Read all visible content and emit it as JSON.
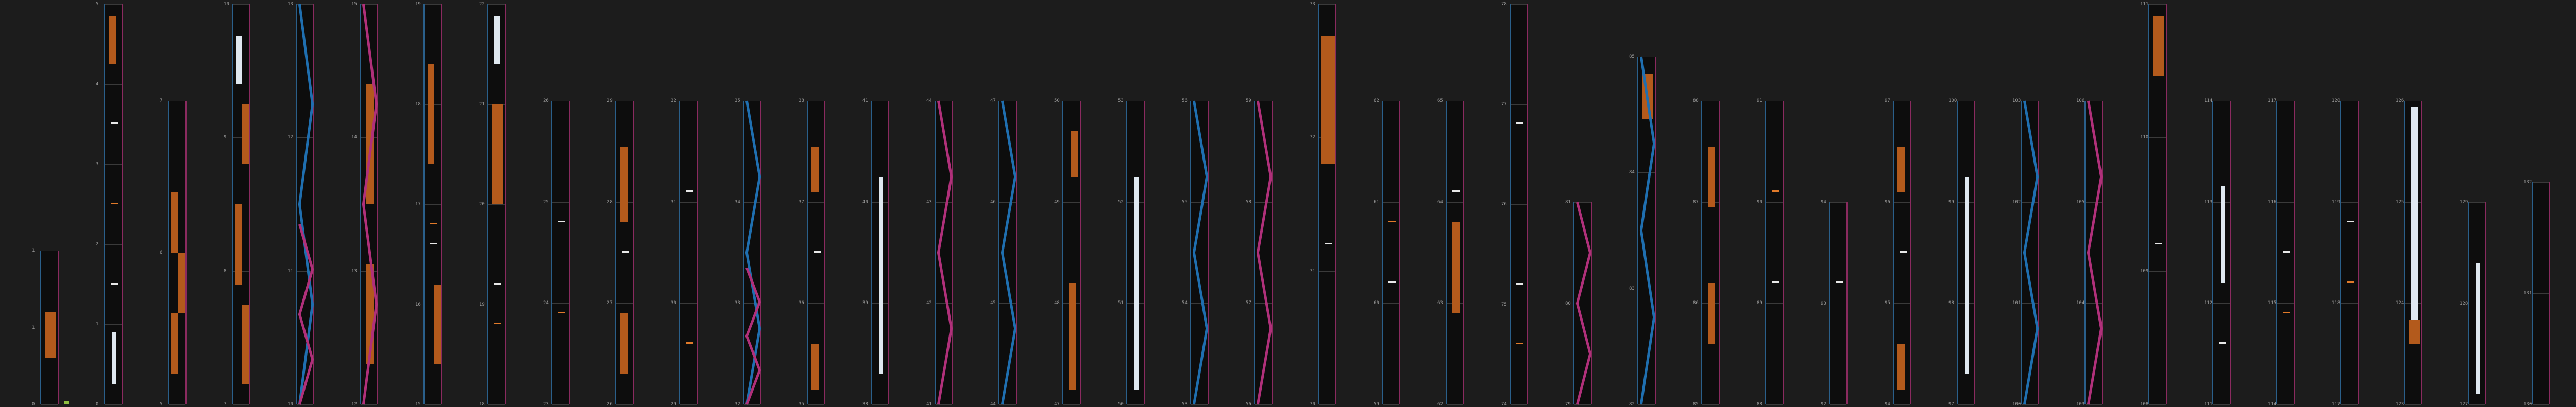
{
  "colors": {
    "background": "#1c1c1c",
    "lane": "#0d0d0d",
    "hold_orange": "#b35a1c",
    "hold_white": "#dfe8f0",
    "curve_blue": "#1f6fb0",
    "curve_pink": "#b0307a",
    "marker_green": "#8fbf40"
  },
  "lanes": [
    {
      "ticks": [
        "1",
        "1",
        "0"
      ],
      "height_frac": 0.38,
      "holds": [
        [
          0.3,
          0.6,
          "o",
          0.2,
          0.8
        ]
      ],
      "taps": []
    },
    {
      "ticks": [
        "5",
        "4",
        "3",
        "2",
        "1",
        "0"
      ],
      "height_frac": 0.99,
      "holds": [
        [
          0.85,
          0.97,
          "o",
          0.2,
          0.6
        ],
        [
          0.05,
          0.18,
          "w",
          0.4,
          0.6
        ]
      ],
      "taps": [
        0.3,
        0.5,
        0.7
      ]
    },
    {
      "ticks": [
        "7",
        "6",
        "5"
      ],
      "height_frac": 0.75,
      "holds": [
        [
          0.5,
          0.7,
          "o",
          0.1,
          0.5
        ],
        [
          0.3,
          0.5,
          "o",
          0.5,
          0.9
        ],
        [
          0.1,
          0.3,
          "o",
          0.1,
          0.5
        ]
      ],
      "taps": []
    },
    {
      "ticks": [
        "10",
        "9",
        "8",
        "7"
      ],
      "height_frac": 0.99,
      "holds": [
        [
          0.8,
          0.92,
          "w",
          0.2,
          0.5
        ],
        [
          0.6,
          0.75,
          "o",
          0.5,
          0.9
        ],
        [
          0.3,
          0.5,
          "o",
          0.1,
          0.5
        ],
        [
          0.05,
          0.25,
          "o",
          0.5,
          0.9
        ]
      ],
      "taps": []
    },
    {
      "ticks": [
        "13",
        "12",
        "11",
        "10"
      ],
      "height_frac": 0.99,
      "holds": [],
      "taps": [],
      "curve": "b",
      "curve2": "p"
    },
    {
      "ticks": [
        "15",
        "14",
        "13",
        "12"
      ],
      "height_frac": 0.99,
      "holds": [
        [
          0.5,
          0.8,
          "o",
          0.3,
          0.7
        ],
        [
          0.1,
          0.35,
          "o",
          0.3,
          0.7
        ]
      ],
      "taps": [],
      "curve": "p"
    },
    {
      "ticks": [
        "19",
        "18",
        "17",
        "16",
        "15"
      ],
      "height_frac": 0.99,
      "holds": [
        [
          0.6,
          0.85,
          "o",
          0.2,
          0.5
        ],
        [
          0.1,
          0.3,
          "o",
          0.5,
          0.9
        ]
      ],
      "taps": [
        0.4,
        0.45
      ]
    },
    {
      "ticks": [
        "22",
        "21",
        "20",
        "19",
        "18"
      ],
      "height_frac": 0.99,
      "holds": [
        [
          0.5,
          0.75,
          "o",
          0.2,
          0.8
        ],
        [
          0.85,
          0.97,
          "w",
          0.3,
          0.6
        ]
      ],
      "taps": [
        0.3,
        0.2
      ]
    },
    {
      "ticks": [
        "26",
        "25",
        "24",
        "23"
      ],
      "height_frac": 0.75,
      "holds": [],
      "taps": [
        0.6,
        0.3
      ]
    },
    {
      "ticks": [
        "29",
        "28",
        "27",
        "26"
      ],
      "height_frac": 0.75,
      "holds": [
        [
          0.6,
          0.85,
          "o",
          0.2,
          0.6
        ],
        [
          0.1,
          0.3,
          "o",
          0.2,
          0.6
        ]
      ],
      "taps": [
        0.5
      ]
    },
    {
      "ticks": [
        "32",
        "31",
        "30",
        "29"
      ],
      "height_frac": 0.75,
      "holds": [],
      "taps": [
        0.7,
        0.2
      ]
    },
    {
      "ticks": [
        "35",
        "34",
        "33",
        "32"
      ],
      "height_frac": 0.75,
      "holds": [],
      "taps": [],
      "curve": "b",
      "curve2": "p"
    },
    {
      "ticks": [
        "38",
        "37",
        "36",
        "35"
      ],
      "height_frac": 0.75,
      "holds": [
        [
          0.7,
          0.85,
          "o",
          0.2,
          0.6
        ],
        [
          0.05,
          0.2,
          "o",
          0.2,
          0.6
        ]
      ],
      "taps": [
        0.5
      ]
    },
    {
      "ticks": [
        "41",
        "40",
        "39",
        "38"
      ],
      "height_frac": 0.75,
      "holds": [
        [
          0.1,
          0.75,
          "w",
          0.4,
          0.6
        ]
      ],
      "taps": []
    },
    {
      "ticks": [
        "44",
        "43",
        "42",
        "41"
      ],
      "height_frac": 0.75,
      "holds": [],
      "taps": [],
      "curve": "p"
    },
    {
      "ticks": [
        "47",
        "46",
        "45",
        "44"
      ],
      "height_frac": 0.75,
      "holds": [],
      "taps": [],
      "curve": "b"
    },
    {
      "ticks": [
        "50",
        "49",
        "48",
        "47"
      ],
      "height_frac": 0.75,
      "holds": [
        [
          0.75,
          0.9,
          "o",
          0.4,
          0.8
        ],
        [
          0.05,
          0.4,
          "o",
          0.3,
          0.7
        ]
      ],
      "taps": []
    },
    {
      "ticks": [
        "53",
        "52",
        "51",
        "50"
      ],
      "height_frac": 0.75,
      "holds": [
        [
          0.05,
          0.75,
          "w",
          0.4,
          0.6
        ]
      ],
      "taps": []
    },
    {
      "ticks": [
        "56",
        "55",
        "54",
        "53"
      ],
      "height_frac": 0.75,
      "holds": [],
      "taps": [],
      "curve": "b"
    },
    {
      "ticks": [
        "59",
        "58",
        "57",
        "56"
      ],
      "height_frac": 0.75,
      "holds": [],
      "taps": [],
      "curve": "p"
    },
    {
      "ticks": [
        "73",
        "72",
        "71",
        "70"
      ],
      "height_frac": 0.99,
      "holds": [
        [
          0.6,
          0.92,
          "o",
          0.1,
          0.9
        ]
      ],
      "taps": [
        0.4
      ]
    },
    {
      "ticks": [
        "62",
        "61",
        "60",
        "59"
      ],
      "height_frac": 0.75,
      "holds": [],
      "taps": [
        0.4,
        0.6
      ]
    },
    {
      "ticks": [
        "65",
        "64",
        "63",
        "62"
      ],
      "height_frac": 0.75,
      "holds": [
        [
          0.3,
          0.6,
          "o",
          0.3,
          0.7
        ]
      ],
      "taps": [
        0.7
      ]
    },
    {
      "ticks": [
        "78",
        "77",
        "76",
        "75",
        "74"
      ],
      "height_frac": 0.99,
      "holds": [],
      "taps": [
        0.3,
        0.15,
        0.7
      ]
    },
    {
      "ticks": [
        "81",
        "80",
        "79"
      ],
      "height_frac": 0.5,
      "holds": [],
      "taps": [],
      "curve": "p"
    },
    {
      "ticks": [
        "85",
        "84",
        "83",
        "82"
      ],
      "height_frac": 0.86,
      "holds": [
        [
          0.82,
          0.95,
          "o",
          0.2,
          0.8
        ]
      ],
      "taps": [],
      "curve": "b"
    },
    {
      "ticks": [
        "88",
        "87",
        "86",
        "85"
      ],
      "height_frac": 0.75,
      "holds": [
        [
          0.2,
          0.4,
          "o",
          0.3,
          0.7
        ],
        [
          0.65,
          0.85,
          "o",
          0.3,
          0.7
        ]
      ],
      "taps": []
    },
    {
      "ticks": [
        "91",
        "90",
        "89",
        "88"
      ],
      "height_frac": 0.75,
      "holds": [],
      "taps": [
        0.4,
        0.7
      ]
    },
    {
      "ticks": [
        "94",
        "93",
        "92"
      ],
      "height_frac": 0.5,
      "holds": [],
      "taps": [
        0.6
      ]
    },
    {
      "ticks": [
        "97",
        "96",
        "95",
        "94"
      ],
      "height_frac": 0.75,
      "holds": [
        [
          0.7,
          0.85,
          "o",
          0.2,
          0.6
        ],
        [
          0.05,
          0.2,
          "o",
          0.2,
          0.6
        ]
      ],
      "taps": [
        0.5
      ]
    },
    {
      "ticks": [
        "100",
        "99",
        "98",
        "97"
      ],
      "height_frac": 0.75,
      "holds": [
        [
          0.1,
          0.75,
          "w",
          0.4,
          0.6
        ]
      ],
      "taps": []
    },
    {
      "ticks": [
        "103",
        "102",
        "101",
        "100"
      ],
      "height_frac": 0.75,
      "holds": [],
      "taps": [],
      "curve": "b"
    },
    {
      "ticks": [
        "106",
        "105",
        "104",
        "103"
      ],
      "height_frac": 0.75,
      "holds": [],
      "taps": [],
      "curve": "p"
    },
    {
      "ticks": [
        "111",
        "110",
        "109",
        "108"
      ],
      "height_frac": 0.99,
      "holds": [
        [
          0.82,
          0.97,
          "o",
          0.2,
          0.8
        ]
      ],
      "taps": [
        0.4
      ]
    },
    {
      "ticks": [
        "114",
        "113",
        "112",
        "111"
      ],
      "height_frac": 0.75,
      "holds": [
        [
          0.4,
          0.72,
          "w",
          0.4,
          0.6
        ]
      ],
      "taps": [
        0.2
      ]
    },
    {
      "ticks": [
        "117",
        "116",
        "115",
        "114"
      ],
      "height_frac": 0.75,
      "holds": [],
      "taps": [
        0.5,
        0.3
      ]
    },
    {
      "ticks": [
        "120",
        "119",
        "118",
        "117"
      ],
      "height_frac": 0.75,
      "holds": [],
      "taps": [
        0.6,
        0.4
      ]
    },
    {
      "ticks": [
        "126",
        "125",
        "124",
        "123"
      ],
      "height_frac": 0.75,
      "holds": [
        [
          0.2,
          0.98,
          "w",
          0.3,
          0.7
        ],
        [
          0.2,
          0.28,
          "o",
          0.2,
          0.8
        ]
      ],
      "taps": []
    },
    {
      "ticks": [
        "129",
        "128",
        "127"
      ],
      "height_frac": 0.5,
      "holds": [
        [
          0.05,
          0.7,
          "w",
          0.4,
          0.6
        ]
      ],
      "taps": []
    },
    {
      "ticks": [
        "132",
        "131",
        "130"
      ],
      "height_frac": 0.55,
      "holds": [],
      "taps": []
    }
  ]
}
